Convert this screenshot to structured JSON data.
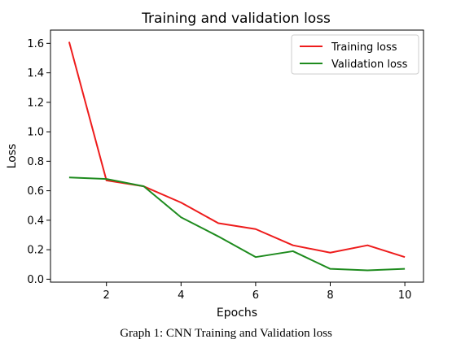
{
  "chart_data": {
    "type": "line",
    "title": "Training and validation loss",
    "xlabel": "Epochs",
    "ylabel": "Loss",
    "x": [
      1,
      2,
      3,
      4,
      5,
      6,
      7,
      8,
      9,
      10
    ],
    "xlim": [
      0.5,
      10.5
    ],
    "ylim": [
      -0.02,
      1.69
    ],
    "xticks": [
      2,
      4,
      6,
      8,
      10
    ],
    "yticks": [
      0.0,
      0.2,
      0.4,
      0.6,
      0.8,
      1.0,
      1.2,
      1.4,
      1.6
    ],
    "grid": false,
    "legend_position": "top-right",
    "series": [
      {
        "name": "Training loss",
        "color": "#ee1c1c",
        "values": [
          1.61,
          0.67,
          0.63,
          0.52,
          0.38,
          0.34,
          0.23,
          0.18,
          0.23,
          0.15
        ]
      },
      {
        "name": "Validation loss",
        "color": "#1e8b1e",
        "values": [
          0.69,
          0.68,
          0.63,
          0.42,
          0.29,
          0.15,
          0.19,
          0.07,
          0.06,
          0.07
        ]
      }
    ]
  },
  "caption": "Graph 1: CNN Training and Validation loss"
}
